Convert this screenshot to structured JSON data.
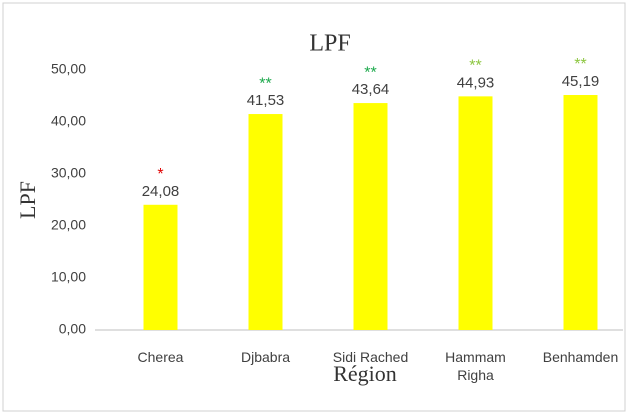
{
  "chart_data": {
    "type": "bar",
    "title": "LPF",
    "y_label": "LPF",
    "x_label": "Région",
    "categories": [
      "Cherea",
      "Djbabra",
      "Sidi Rached",
      "Hammam Righa",
      "Benhamden"
    ],
    "values": [
      24.08,
      41.53,
      43.64,
      44.93,
      45.19
    ],
    "value_labels": [
      "24,08",
      "41,53",
      "43,64",
      "44,93",
      "45,19"
    ],
    "annotations": [
      {
        "text": "*",
        "color": "#e00000"
      },
      {
        "text": "**",
        "color": "#1aa84a"
      },
      {
        "text": "**",
        "color": "#1aa84a"
      },
      {
        "text": "**",
        "color": "#8cc63f"
      },
      {
        "text": "**",
        "color": "#8cc63f"
      }
    ],
    "color": "#ffff00",
    "ylim": [
      0,
      50
    ],
    "yticks": [
      {
        "value": 0,
        "label": "0,00"
      },
      {
        "value": 10,
        "label": "10,00"
      },
      {
        "value": 20,
        "label": "20,00"
      },
      {
        "value": 30,
        "label": "30,00"
      },
      {
        "value": 40,
        "label": "40,00"
      },
      {
        "value": 50,
        "label": "50,00"
      }
    ],
    "grid": false
  }
}
